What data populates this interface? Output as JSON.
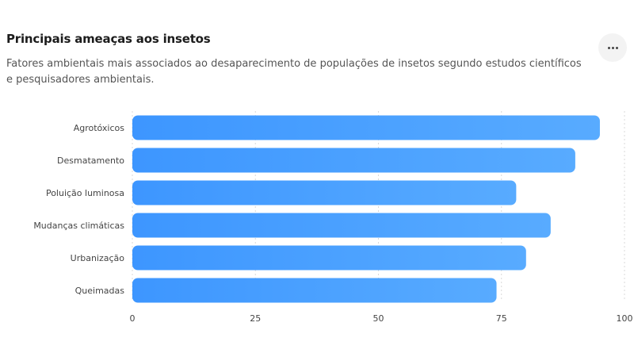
{
  "header": {
    "title": "Principais ameaças aos insetos",
    "subtitle": "Fatores ambientais mais associados ao desaparecimento de populações de insetos segundo estudos científicos e pesquisadores ambientais.",
    "menu_icon": "more-horizontal-icon"
  },
  "chart_data": {
    "type": "bar",
    "orientation": "horizontal",
    "title": "Principais ameaças aos insetos",
    "subtitle": "Fatores ambientais mais associados ao desaparecimento de populações de insetos segundo estudos científicos e pesquisadores ambientais.",
    "xlabel": "",
    "ylabel": "",
    "categories": [
      "Agrotóxicos",
      "Desmatamento",
      "Poluição luminosa",
      "Mudanças climáticas",
      "Urbanização",
      "Queimadas"
    ],
    "values": [
      95,
      90,
      78,
      85,
      80,
      74
    ],
    "xlim": [
      0,
      100
    ],
    "xticks": [
      0,
      25,
      50,
      75,
      100
    ],
    "grid": "vertical dotted",
    "legend": "none",
    "bar_color": "#4da3ff"
  }
}
